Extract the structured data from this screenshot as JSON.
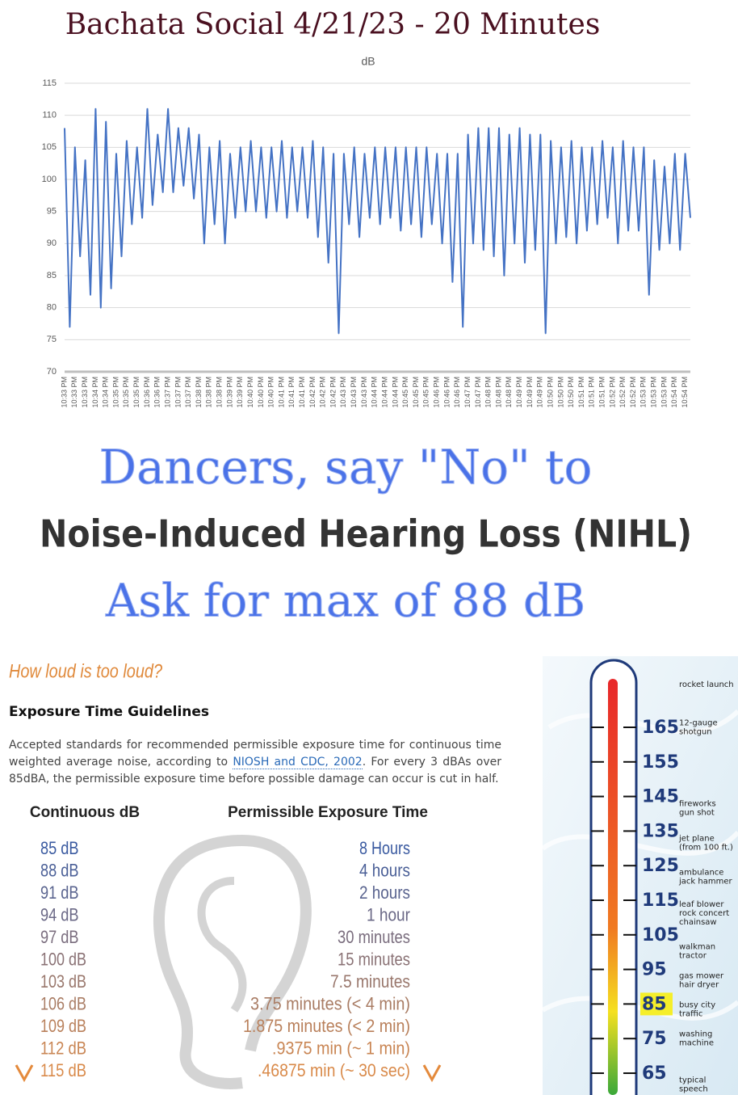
{
  "chart_data": {
    "type": "line",
    "title": "Bachata Social 4/21/23 - 20 Minutes",
    "categories": [
      "10:33 PM",
      null,
      "10:33 PM",
      null,
      "10:33 PM",
      null,
      "10:34 PM",
      null,
      "10:34 PM",
      null,
      "10:35 PM",
      null,
      "10:35 PM",
      null,
      "10:35 PM",
      null,
      "10:36 PM",
      null,
      "10:36 PM",
      null,
      "10:37 PM",
      null,
      "10:37 PM",
      null,
      "10:37 PM",
      null,
      "10:38 PM",
      null,
      "10:38 PM",
      null,
      "10:38 PM",
      null,
      "10:39 PM",
      null,
      "10:39 PM",
      null,
      "10:40 PM",
      null,
      "10:40 PM",
      null,
      "10:40 PM",
      null,
      "10:41 PM",
      null,
      "10:41 PM",
      null,
      "10:41 PM",
      null,
      "10:42 PM",
      null,
      "10:42 PM",
      null,
      "10:42 PM",
      null,
      "10:43 PM",
      null,
      "10:43 PM",
      null,
      "10:43 PM",
      null,
      "10:44 PM",
      null,
      "10:44 PM",
      null,
      "10:44 PM",
      null,
      "10:45 PM",
      null,
      "10:45 PM",
      null,
      "10:45 PM",
      null,
      "10:46 PM",
      null,
      "10:46 PM",
      null,
      "10:46 PM",
      null,
      "10:47 PM",
      null,
      "10:47 PM",
      null,
      "10:48 PM",
      null,
      "10:48 PM",
      null,
      "10:48 PM",
      null,
      "10:49 PM",
      null,
      "10:49 PM",
      null,
      "10:49 PM",
      null,
      "10:50 PM",
      null,
      "10:50 PM",
      null,
      "10:50 PM",
      null,
      "10:51 PM",
      null,
      "10:51 PM",
      null,
      "10:51 PM",
      null,
      "10:52 PM",
      null,
      "10:52 PM",
      null,
      "10:52 PM",
      null,
      "10:53 PM",
      null,
      "10:53 PM",
      null,
      "10:53 PM",
      null,
      "10:54 PM",
      null,
      "10:54 PM",
      null
    ],
    "series": [
      {
        "name": "dB",
        "color": "#4472c4",
        "values": [
          108,
          77,
          105,
          88,
          103,
          82,
          111,
          80,
          109,
          83,
          104,
          88,
          106,
          93,
          105,
          94,
          111,
          96,
          107,
          98,
          111,
          98,
          108,
          99,
          108,
          97,
          107,
          90,
          105,
          93,
          106,
          90,
          104,
          94,
          105,
          95,
          106,
          95,
          105,
          94,
          105,
          95,
          106,
          94,
          105,
          95,
          105,
          94,
          106,
          91,
          105,
          87,
          104,
          76,
          104,
          93,
          105,
          91,
          104,
          94,
          105,
          93,
          105,
          94,
          105,
          92,
          105,
          93,
          105,
          91,
          105,
          93,
          104,
          90,
          104,
          84,
          104,
          77,
          107,
          90,
          108,
          89,
          108,
          88,
          108,
          85,
          107,
          90,
          108,
          87,
          107,
          89,
          107,
          76,
          106,
          90,
          105,
          91,
          106,
          90,
          105,
          92,
          105,
          93,
          106,
          94,
          105,
          90,
          106,
          92,
          105,
          92,
          105,
          82,
          103,
          89,
          102,
          90,
          104,
          89,
          104,
          94
        ]
      }
    ],
    "ylim": [
      70,
      115
    ],
    "yticks": [
      70,
      75,
      80,
      85,
      90,
      95,
      100,
      105,
      110,
      115
    ],
    "grid": true
  },
  "slogan": {
    "line1": "Dancers, say \"No\" to",
    "line2": "Noise-Induced Hearing Loss (NIHL)",
    "line3": "Ask for max of 88 dB"
  },
  "guide": {
    "heading": "How loud is too loud?",
    "subheading": "Exposure Time Guidelines",
    "text_before": "Accepted standards for recommended permissible exposure time for continuous time weighted average noise, according to ",
    "link": "NIOSH and CDC, 2002",
    "text_after": ". For every 3 dBAs over 85dBA, the permissible exposure time before possible damage can occur is cut in half.",
    "headers": [
      "Continuous dB",
      "Permissible Exposure Time"
    ],
    "rows": [
      [
        "85 dB",
        "8 Hours"
      ],
      [
        "88 dB",
        "4 hours"
      ],
      [
        "91 dB",
        "2 hours"
      ],
      [
        "94 dB",
        "1 hour"
      ],
      [
        "97 dB",
        "30 minutes"
      ],
      [
        "100 dB",
        "15 minutes"
      ],
      [
        "103 dB",
        "7.5 minutes"
      ],
      [
        "106 dB",
        "3.75 minutes (< 4 min)"
      ],
      [
        "109 dB",
        "1.875 minutes (< 2 min)"
      ],
      [
        "112 dB",
        ".9375 min (~ 1 min)"
      ],
      [
        "115 dB",
        ".46875 min (~ 30 sec)"
      ]
    ]
  },
  "thermometer": {
    "ticks": [
      {
        "value": 165
      },
      {
        "value": 155
      },
      {
        "value": 145
      },
      {
        "value": 135
      },
      {
        "value": 125
      },
      {
        "value": 115
      },
      {
        "value": 105
      },
      {
        "value": 95
      },
      {
        "value": 85,
        "highlight": true
      },
      {
        "value": 75
      },
      {
        "value": 65
      }
    ],
    "sources": [
      [
        "rocket launch"
      ],
      [
        "12-gauge",
        "shotgun"
      ],
      [
        "fireworks",
        "gun shot"
      ],
      [
        "jet plane",
        "(from 100 ft.)"
      ],
      [
        "ambulance",
        "jack hammer"
      ],
      [
        "leaf blower",
        "rock concert",
        "chainsaw"
      ],
      [
        "walkman",
        "tractor"
      ],
      [
        "gas mower",
        "hair dryer"
      ],
      [
        "busy city",
        "traffic"
      ],
      [
        "washing",
        "machine"
      ],
      [
        "typical",
        "speech"
      ]
    ]
  }
}
